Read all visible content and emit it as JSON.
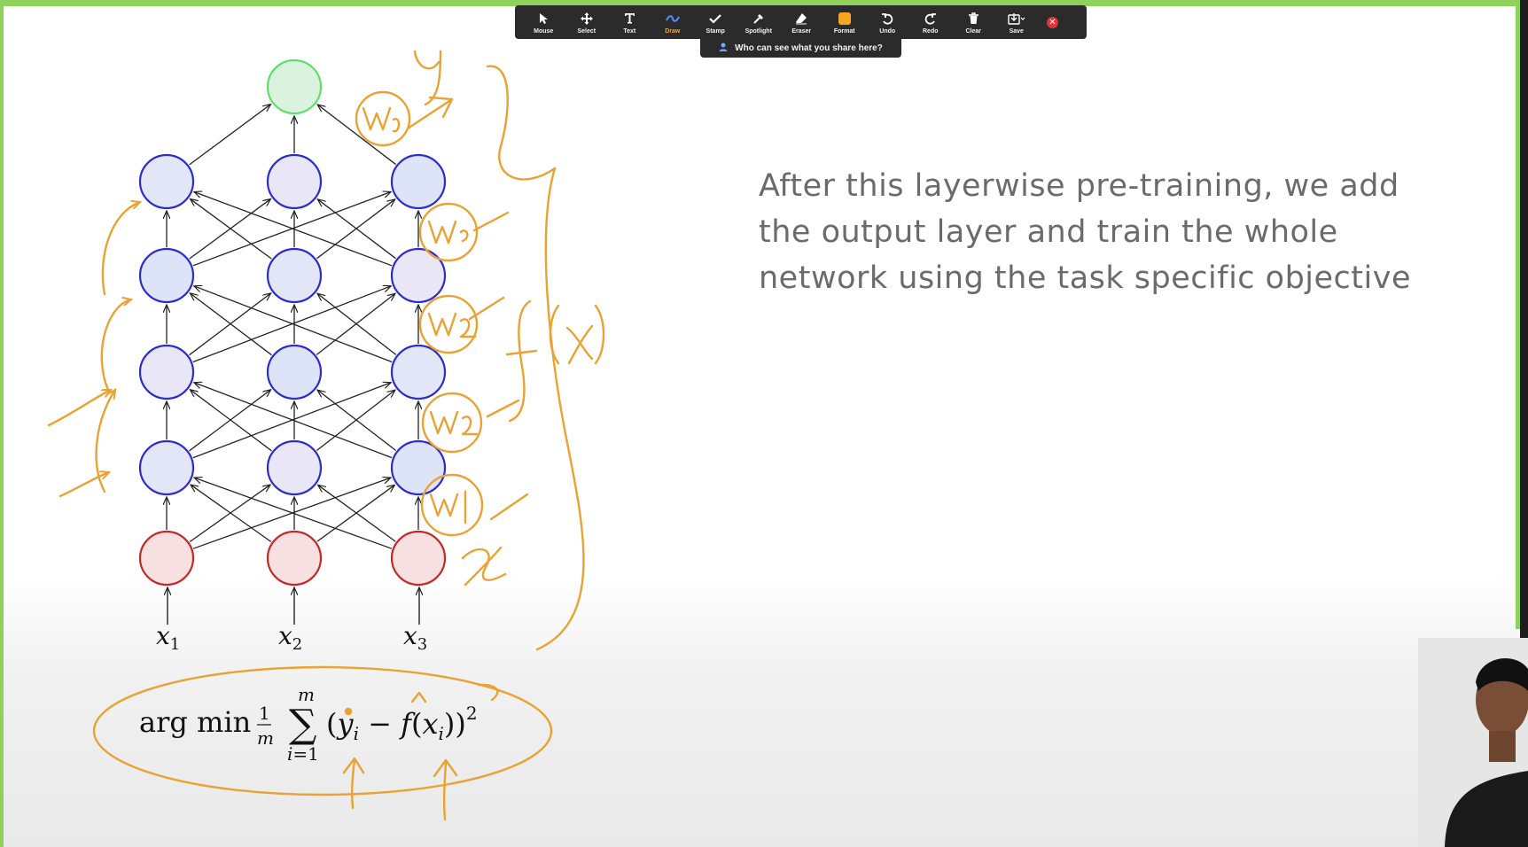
{
  "toolbar": {
    "items": [
      {
        "label": "Mouse",
        "icon": "cursor-icon"
      },
      {
        "label": "Select",
        "icon": "move-icon"
      },
      {
        "label": "Text",
        "icon": "text-icon"
      },
      {
        "label": "Draw",
        "icon": "draw-icon",
        "active": true
      },
      {
        "label": "Stamp",
        "icon": "check-icon"
      },
      {
        "label": "Spotlight",
        "icon": "spotlight-icon"
      },
      {
        "label": "Eraser",
        "icon": "eraser-icon"
      },
      {
        "label": "Format",
        "icon": "format-icon",
        "color": "#f5a623"
      },
      {
        "label": "Undo",
        "icon": "undo-icon"
      },
      {
        "label": "Redo",
        "icon": "redo-icon"
      },
      {
        "label": "Clear",
        "icon": "trash-icon"
      },
      {
        "label": "Save",
        "icon": "save-icon"
      }
    ],
    "share_notice": "Who can see what you share here?"
  },
  "slide": {
    "text": "After this layerwise pre-training, we add the output layer and train the whole network using the task specific objective",
    "inputs": [
      "x1",
      "x2",
      "x3"
    ],
    "formula": "arg min 1/m ∑_{i=1}^{m} (y_i − f(x_i))^2"
  },
  "colors": {
    "accent_border": "#8ed15b",
    "annotation": "#e9a233",
    "input_node": "#c62828",
    "hidden_node": "#2d2dcc",
    "output_node": "#5ee06a"
  }
}
